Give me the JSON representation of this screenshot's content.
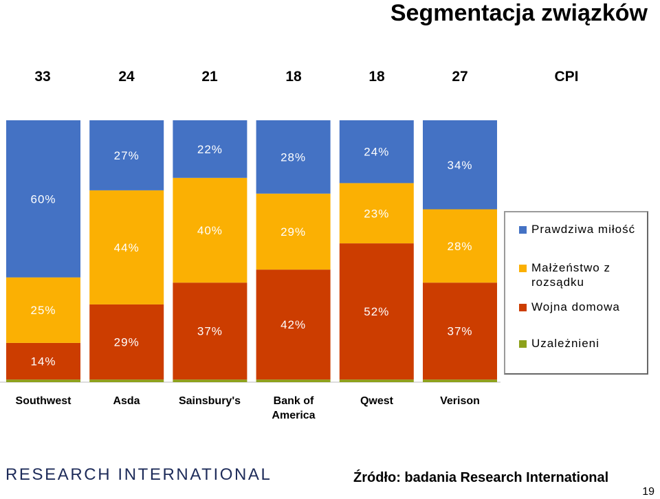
{
  "title": "Segmentacja związków",
  "cpi_label": "CPI",
  "cpi_values": [
    "33",
    "24",
    "21",
    "18",
    "18",
    "27"
  ],
  "legend": [
    {
      "label": "Prawdziwa miłość",
      "color": "#4472C4"
    },
    {
      "label": "Małżeństwo z rozsądku",
      "color": "#FBB003"
    },
    {
      "label": "Wojna domowa",
      "color": "#CC3D00"
    },
    {
      "label": "Uzależnieni",
      "color": "#8DA11B"
    }
  ],
  "chart_data": {
    "type": "bar",
    "stacked": true,
    "categories": [
      "Southwest",
      "Asda",
      "Sainsbury's",
      "Bank of America",
      "Qwest",
      "Verison"
    ],
    "series": [
      {
        "name": "Uzależnieni",
        "color": "#8DA11B",
        "values": [
          1,
          1,
          1,
          1,
          1,
          1
        ]
      },
      {
        "name": "Wojna domowa",
        "color": "#CC3D00",
        "values": [
          14,
          29,
          37,
          42,
          52,
          37
        ]
      },
      {
        "name": "Małżeństwo z rozsądku",
        "color": "#FBB003",
        "values": [
          25,
          44,
          40,
          29,
          23,
          28
        ]
      },
      {
        "name": "Prawdziwa miłość",
        "color": "#4472C4",
        "values": [
          60,
          27,
          22,
          28,
          24,
          34
        ]
      }
    ],
    "data_labels": [
      [
        "",
        "",
        "",
        "",
        "",
        ""
      ],
      [
        "14%",
        "29%",
        "37%",
        "42%",
        "52%",
        "37%"
      ],
      [
        "25%",
        "44%",
        "40%",
        "29%",
        "23%",
        "28%"
      ],
      [
        "60%",
        "27%",
        "22%",
        "28%",
        "24%",
        "34%"
      ]
    ],
    "ylim": [
      0,
      100
    ],
    "grid": false,
    "legend_position": "right"
  },
  "footer": {
    "logo_text": "RESEARCH INTERNATIONAL",
    "source": "Źródło: badania Research International",
    "page_number": "19"
  }
}
